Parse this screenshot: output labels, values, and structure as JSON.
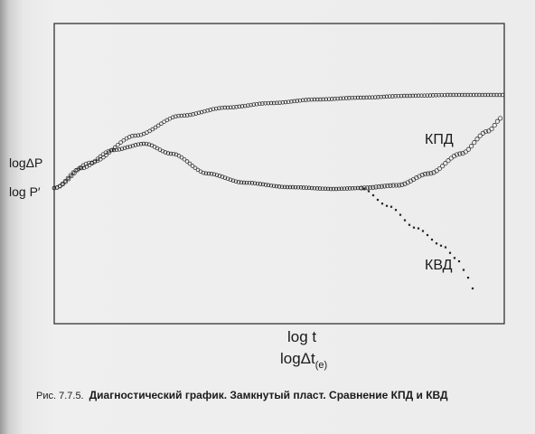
{
  "figure": {
    "y_labels": [
      "logΔP",
      "log P′"
    ],
    "x_label_1": "log t",
    "x_label_2_main": "logΔt",
    "x_label_2_sub": "(e)",
    "curve_labels": {
      "kpd": "КПД",
      "kvd": "КВД"
    },
    "caption_number": "Рис. 7.7.5.",
    "caption_text": "Диагностический график. Замкнутый пласт. Сравнение КПД и КВД"
  },
  "colors": {
    "ink": "#222222",
    "background": "#ececec"
  }
}
